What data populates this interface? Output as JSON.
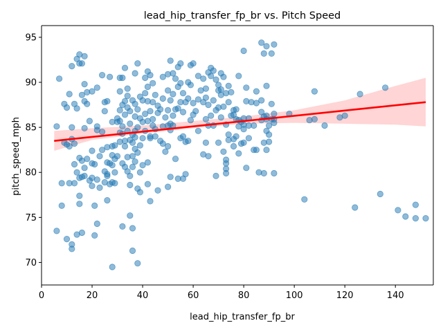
{
  "chart_data": {
    "type": "scatter",
    "title": "lead_hip_transfer_fp_br vs. Pitch Speed",
    "xlabel": "lead_hip_transfer_fp_br",
    "ylabel": "pitch_speed_mph",
    "xlim": [
      0,
      155
    ],
    "ylim": [
      67.5,
      96.3
    ],
    "xticks": [
      0,
      20,
      40,
      60,
      80,
      100,
      120,
      140
    ],
    "yticks": [
      70,
      75,
      80,
      85,
      90,
      95
    ],
    "grid": false,
    "legend": "none",
    "colors": {
      "points": "#1f77b4",
      "fit_line": "#ff0000",
      "ci_band": "#ffb3b3"
    },
    "regression": {
      "x": [
        5,
        152
      ],
      "y": [
        83.5,
        87.8
      ]
    },
    "confidence_band": {
      "x": [
        5,
        20,
        40,
        60,
        80,
        100,
        120,
        140,
        152
      ],
      "lower": [
        82.4,
        83.6,
        84.3,
        84.9,
        85.4,
        85.5,
        85.4,
        85.3,
        85.1
      ],
      "upper": [
        84.6,
        84.9,
        85.2,
        85.7,
        86.2,
        86.9,
        88.0,
        89.6,
        90.5
      ]
    },
    "points": [
      [
        6,
        73.5
      ],
      [
        6,
        85.1
      ],
      [
        7,
        90.4
      ],
      [
        8,
        78.8
      ],
      [
        8,
        76.3
      ],
      [
        9,
        87.6
      ],
      [
        9,
        83.3
      ],
      [
        10,
        87.2
      ],
      [
        10,
        83.1
      ],
      [
        10,
        72.6
      ],
      [
        11,
        88.7
      ],
      [
        11,
        82.9
      ],
      [
        11,
        78.8
      ],
      [
        12,
        91.8
      ],
      [
        12,
        85.0
      ],
      [
        12,
        83.7
      ],
      [
        12,
        72.0
      ],
      [
        12,
        71.5
      ],
      [
        13,
        87.6
      ],
      [
        13,
        83.2
      ],
      [
        13,
        80.9
      ],
      [
        13,
        78.8
      ],
      [
        14,
        92.6
      ],
      [
        14,
        87.1
      ],
      [
        14,
        80.0
      ],
      [
        14,
        73.1
      ],
      [
        15,
        93.1
      ],
      [
        15,
        92.1
      ],
      [
        15,
        81.6
      ],
      [
        15,
        79.4
      ],
      [
        15,
        77.4
      ],
      [
        15,
        76.5
      ],
      [
        16,
        92.1
      ],
      [
        16,
        88.6
      ],
      [
        16,
        81.3
      ],
      [
        16,
        79.5
      ],
      [
        16,
        73.3
      ],
      [
        17,
        92.9
      ],
      [
        17,
        89.8
      ],
      [
        17,
        87.9
      ],
      [
        17,
        84.9
      ],
      [
        17,
        80.5
      ],
      [
        17,
        79.6
      ],
      [
        18,
        88.9
      ],
      [
        18,
        87.6
      ],
      [
        18,
        81.5
      ],
      [
        19,
        85.7
      ],
      [
        19,
        79.1
      ],
      [
        20,
        89.0
      ],
      [
        20,
        82.4
      ],
      [
        20,
        81.0
      ],
      [
        20,
        79.4
      ],
      [
        20,
        78.5
      ],
      [
        21,
        80.9
      ],
      [
        21,
        76.3
      ],
      [
        21,
        73.0
      ],
      [
        22,
        89.4
      ],
      [
        22,
        85.1
      ],
      [
        22,
        84.7
      ],
      [
        22,
        79.2
      ],
      [
        22,
        74.3
      ],
      [
        23,
        81.8
      ],
      [
        23,
        78.3
      ],
      [
        24,
        90.8
      ],
      [
        24,
        84.5
      ],
      [
        24,
        82.5
      ],
      [
        25,
        87.8
      ],
      [
        25,
        86.8
      ],
      [
        25,
        80.1
      ],
      [
        25,
        78.9
      ],
      [
        26,
        87.9
      ],
      [
        26,
        82.8
      ],
      [
        26,
        81.1
      ],
      [
        26,
        79.8
      ],
      [
        26,
        79.6
      ],
      [
        26,
        76.9
      ],
      [
        27,
        90.6
      ],
      [
        27,
        81.0
      ],
      [
        27,
        78.7
      ],
      [
        28,
        85.6
      ],
      [
        28,
        82.9
      ],
      [
        28,
        81.9
      ],
      [
        28,
        80.8
      ],
      [
        28,
        78.9
      ],
      [
        28,
        69.5
      ],
      [
        29,
        83.0
      ],
      [
        29,
        81.5
      ],
      [
        29,
        80.0
      ],
      [
        29,
        78.8
      ],
      [
        30,
        86.0
      ],
      [
        30,
        85.6
      ],
      [
        30,
        81.8
      ],
      [
        31,
        90.5
      ],
      [
        31,
        89.0
      ],
      [
        31,
        86.9
      ],
      [
        31,
        85.7
      ],
      [
        31,
        84.4
      ],
      [
        31,
        83.4
      ],
      [
        32,
        90.5
      ],
      [
        32,
        87.5
      ],
      [
        32,
        85.1
      ],
      [
        32,
        84.3
      ],
      [
        32,
        81.0
      ],
      [
        32,
        74.0
      ],
      [
        33,
        91.6
      ],
      [
        33,
        87.9
      ],
      [
        33,
        86.4
      ],
      [
        33,
        83.5
      ],
      [
        33,
        82.9
      ],
      [
        33,
        80.6
      ],
      [
        34,
        89.3
      ],
      [
        34,
        88.5
      ],
      [
        34,
        87.2
      ],
      [
        34,
        84.6
      ],
      [
        34,
        81.7
      ],
      [
        34,
        80.1
      ],
      [
        35,
        86.8
      ],
      [
        35,
        85.4
      ],
      [
        35,
        83.6
      ],
      [
        35,
        79.6
      ],
      [
        35,
        78.6
      ],
      [
        35,
        75.2
      ],
      [
        36,
        88.0
      ],
      [
        36,
        84.2
      ],
      [
        36,
        83.3
      ],
      [
        36,
        81.8
      ],
      [
        36,
        80.6
      ],
      [
        36,
        73.8
      ],
      [
        36,
        71.3
      ],
      [
        37,
        91.0
      ],
      [
        37,
        87.6
      ],
      [
        37,
        86.2
      ],
      [
        37,
        84.6
      ],
      [
        37,
        83.9
      ],
      [
        37,
        82.6
      ],
      [
        37,
        81.2
      ],
      [
        38,
        92.1
      ],
      [
        38,
        87.0
      ],
      [
        38,
        85.0
      ],
      [
        38,
        82.2
      ],
      [
        38,
        78.2
      ],
      [
        38,
        69.9
      ],
      [
        39,
        88.4
      ],
      [
        39,
        86.0
      ],
      [
        39,
        83.0
      ],
      [
        39,
        80.0
      ],
      [
        39,
        77.8
      ],
      [
        40,
        88.0
      ],
      [
        40,
        85.6
      ],
      [
        40,
        83.8
      ],
      [
        40,
        80.8
      ],
      [
        41,
        90.5
      ],
      [
        41,
        88.8
      ],
      [
        41,
        86.5
      ],
      [
        41,
        84.6
      ],
      [
        42,
        91.2
      ],
      [
        42,
        89.5
      ],
      [
        42,
        87.9
      ],
      [
        42,
        85.7
      ],
      [
        42,
        81.1
      ],
      [
        42,
        78.7
      ],
      [
        43,
        90.8
      ],
      [
        43,
        86.8
      ],
      [
        43,
        84.0
      ],
      [
        43,
        83.8
      ],
      [
        43,
        76.8
      ],
      [
        44,
        89.9
      ],
      [
        44,
        87.8
      ],
      [
        44,
        85.9
      ],
      [
        44,
        85.2
      ],
      [
        45,
        88.6
      ],
      [
        45,
        84.8
      ],
      [
        45,
        84.0
      ],
      [
        46,
        87.4
      ],
      [
        46,
        86.6
      ],
      [
        46,
        78.0
      ],
      [
        47,
        87.0
      ],
      [
        47,
        83.5
      ],
      [
        48,
        90.6
      ],
      [
        48,
        88.2
      ],
      [
        48,
        85.1
      ],
      [
        48,
        83.2
      ],
      [
        49,
        86.1
      ],
      [
        49,
        82.3
      ],
      [
        50,
        90.9
      ],
      [
        50,
        89.1
      ],
      [
        50,
        86.9
      ],
      [
        50,
        85.2
      ],
      [
        50,
        82.9
      ],
      [
        50,
        78.4
      ],
      [
        51,
        92.4
      ],
      [
        51,
        88.0
      ],
      [
        51,
        85.4
      ],
      [
        51,
        84.7
      ],
      [
        51,
        79.5
      ],
      [
        52,
        91.0
      ],
      [
        52,
        88.7
      ],
      [
        52,
        86.3
      ],
      [
        52,
        85.2
      ],
      [
        53,
        90.4
      ],
      [
        53,
        87.0
      ],
      [
        53,
        81.5
      ],
      [
        54,
        91.7
      ],
      [
        54,
        89.5
      ],
      [
        54,
        87.1
      ],
      [
        54,
        79.3
      ],
      [
        55,
        92.1
      ],
      [
        55,
        89.9
      ],
      [
        55,
        87.8
      ],
      [
        55,
        83.8
      ],
      [
        56,
        88.8
      ],
      [
        56,
        86.7
      ],
      [
        56,
        84.0
      ],
      [
        56,
        79.3
      ],
      [
        57,
        87.8
      ],
      [
        57,
        83.4
      ],
      [
        57,
        79.8
      ],
      [
        58,
        90.0
      ],
      [
        58,
        88.2
      ],
      [
        58,
        83.5
      ],
      [
        59,
        91.9
      ],
      [
        59,
        89.7
      ],
      [
        59,
        85.8
      ],
      [
        60,
        92.1
      ],
      [
        60,
        87.7
      ],
      [
        60,
        86.4
      ],
      [
        61,
        86.8
      ],
      [
        62,
        90.7
      ],
      [
        62,
        88.1
      ],
      [
        62,
        84.6
      ],
      [
        63,
        89.1
      ],
      [
        64,
        90.4
      ],
      [
        64,
        87.8
      ],
      [
        64,
        82.0
      ],
      [
        65,
        89.3
      ],
      [
        65,
        88.3
      ],
      [
        65,
        85.9
      ],
      [
        65,
        83.3
      ],
      [
        66,
        91.1
      ],
      [
        66,
        87.5
      ],
      [
        66,
        85.2
      ],
      [
        66,
        81.8
      ],
      [
        67,
        91.6
      ],
      [
        67,
        90.7
      ],
      [
        67,
        86.3
      ],
      [
        68,
        91.3
      ],
      [
        68,
        88.0
      ],
      [
        68,
        85.2
      ],
      [
        69,
        90.3
      ],
      [
        69,
        86.9
      ],
      [
        69,
        79.6
      ],
      [
        70,
        89.7
      ],
      [
        70,
        89.1
      ],
      [
        70,
        87.2
      ],
      [
        70,
        83.3
      ],
      [
        71,
        91.0
      ],
      [
        71,
        89.2
      ],
      [
        71,
        88.6
      ],
      [
        71,
        86.1
      ],
      [
        72,
        90.6
      ],
      [
        72,
        87.3
      ],
      [
        72,
        82.3
      ],
      [
        73,
        88.8
      ],
      [
        73,
        85.3
      ],
      [
        73,
        81.4
      ],
      [
        73,
        81.0
      ],
      [
        73,
        80.4
      ],
      [
        73,
        79.9
      ],
      [
        74,
        89.6
      ],
      [
        74,
        87.8
      ],
      [
        74,
        84.2
      ],
      [
        74,
        83.6
      ],
      [
        75,
        88.9
      ],
      [
        75,
        86.3
      ],
      [
        76,
        86.9
      ],
      [
        76,
        86.4
      ],
      [
        76,
        83.7
      ],
      [
        76,
        82.9
      ],
      [
        77,
        87.0
      ],
      [
        77,
        85.9
      ],
      [
        77,
        84.0
      ],
      [
        78,
        90.7
      ],
      [
        78,
        85.8
      ],
      [
        78,
        85.1
      ],
      [
        78,
        82.1
      ],
      [
        79,
        85.6
      ],
      [
        79,
        83.2
      ],
      [
        80,
        93.5
      ],
      [
        80,
        86.0
      ],
      [
        80,
        85.3
      ],
      [
        80,
        84.8
      ],
      [
        80,
        83.3
      ],
      [
        81,
        89.4
      ],
      [
        81,
        87.9
      ],
      [
        81,
        80.5
      ],
      [
        82,
        86.0
      ],
      [
        82,
        85.2
      ],
      [
        82,
        83.8
      ],
      [
        83,
        87.8
      ],
      [
        84,
        85.2
      ],
      [
        84,
        82.5
      ],
      [
        85,
        89.0
      ],
      [
        85,
        87.7
      ],
      [
        85,
        82.5
      ],
      [
        86,
        80.0
      ],
      [
        87,
        94.4
      ],
      [
        87,
        88.0
      ],
      [
        87,
        86.7
      ],
      [
        87,
        85.8
      ],
      [
        88,
        93.2
      ],
      [
        88,
        86.2
      ],
      [
        88,
        83.3
      ],
      [
        88,
        79.9
      ],
      [
        89,
        94.0
      ],
      [
        89,
        89.6
      ],
      [
        89,
        86.3
      ],
      [
        89,
        85.9
      ],
      [
        89,
        84.6
      ],
      [
        89,
        82.5
      ],
      [
        90,
        85.2
      ],
      [
        90,
        84.2
      ],
      [
        90,
        83.4
      ],
      [
        91,
        93.2
      ],
      [
        91,
        87.6
      ],
      [
        91,
        85.9
      ],
      [
        92,
        94.2
      ],
      [
        92,
        86.5
      ],
      [
        92,
        85.9
      ],
      [
        92,
        85.5
      ],
      [
        92,
        79.9
      ],
      [
        98,
        86.5
      ],
      [
        104,
        77.0
      ],
      [
        106,
        85.8
      ],
      [
        108,
        89.0
      ],
      [
        108,
        85.9
      ],
      [
        112,
        85.2
      ],
      [
        118,
        86.1
      ],
      [
        120,
        86.3
      ],
      [
        124,
        76.1
      ],
      [
        126,
        88.7
      ],
      [
        134,
        77.6
      ],
      [
        136,
        89.4
      ],
      [
        141,
        75.8
      ],
      [
        144,
        75.1
      ],
      [
        148,
        76.4
      ],
      [
        148,
        74.9
      ],
      [
        152,
        74.9
      ]
    ]
  }
}
